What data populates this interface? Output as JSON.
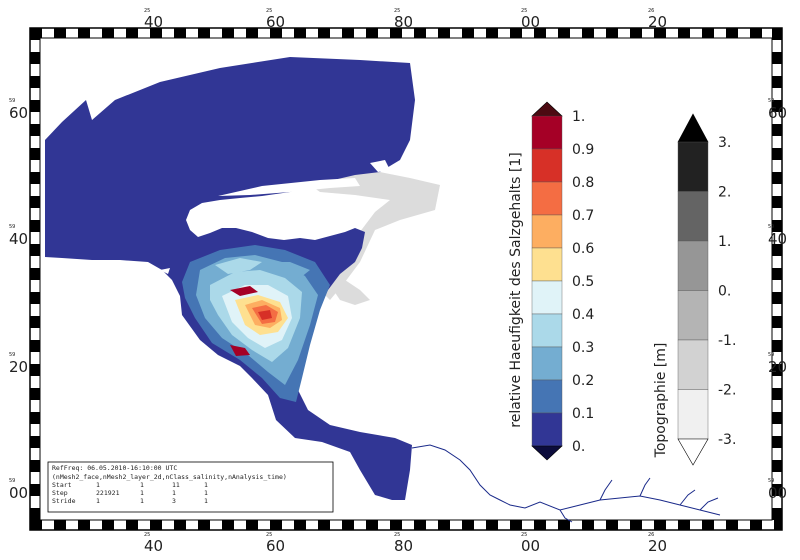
{
  "frame": {
    "top_ticks": [
      {
        "small": "25",
        "big": "40"
      },
      {
        "small": "25",
        "big": "60"
      },
      {
        "small": "25",
        "big": "80"
      },
      {
        "small": "25",
        "big": "00"
      },
      {
        "small": "26",
        "big": "20"
      }
    ],
    "bottom_ticks": [
      {
        "small": "25",
        "big": "40"
      },
      {
        "small": "25",
        "big": "60"
      },
      {
        "small": "25",
        "big": "80"
      },
      {
        "small": "25",
        "big": "00"
      },
      {
        "small": "26",
        "big": "20"
      }
    ],
    "left_ticks": [
      {
        "small": "59",
        "big": "60"
      },
      {
        "small": "59",
        "big": "40"
      },
      {
        "small": "59",
        "big": "20"
      },
      {
        "small": "59",
        "big": "00"
      }
    ],
    "right_ticks": [
      {
        "small": "59",
        "big": "60"
      },
      {
        "small": "59",
        "big": "40"
      },
      {
        "small": "59",
        "big": "20"
      },
      {
        "small": "59",
        "big": "00"
      }
    ]
  },
  "salinity_colorbar": {
    "title": "relative Haeufigkeit des Salzgehalts [1]",
    "labels": [
      "1.",
      "0.9",
      "0.8",
      "0.7",
      "0.6",
      "0.5",
      "0.4",
      "0.3",
      "0.2",
      "0.1",
      "0."
    ],
    "colors": [
      "#a50026",
      "#d73027",
      "#f46d43",
      "#fdae61",
      "#fee090",
      "#e0f3f8",
      "#abd9e9",
      "#74add1",
      "#4575b4",
      "#313695"
    ],
    "over_color": "#4d0a12",
    "under_color": "#0c0c3c"
  },
  "topo_colorbar": {
    "title": "Topographie [m]",
    "labels": [
      "3.",
      "2.",
      "1.",
      "0.",
      "-1.",
      "-2.",
      "-3."
    ],
    "colors": [
      "#222222",
      "#646464",
      "#969696",
      "#b4b4b4",
      "#d2d2d2",
      "#f0f0f0"
    ],
    "over_color": "#000000",
    "under_color": "#ffffff"
  },
  "info_box": {
    "line1": "RefFreq: 06.05.2010-16:10:00 UTC",
    "line2": "(nMesh2_face,nMesh2_layer_2d,nClass_salinity,nAnalysis_time)",
    "start_label": "Start",
    "start_values": [
      "1",
      "1",
      "11",
      "1"
    ],
    "step_label": "Step",
    "step_values": [
      "221921",
      "1",
      "1",
      "1"
    ],
    "stride_label": "Stride",
    "stride_values": [
      "1",
      "1",
      "3",
      "1"
    ]
  },
  "colors": {
    "water": "#313695",
    "land_gray": "#dcdcdc",
    "river": "#1a2a8a"
  }
}
